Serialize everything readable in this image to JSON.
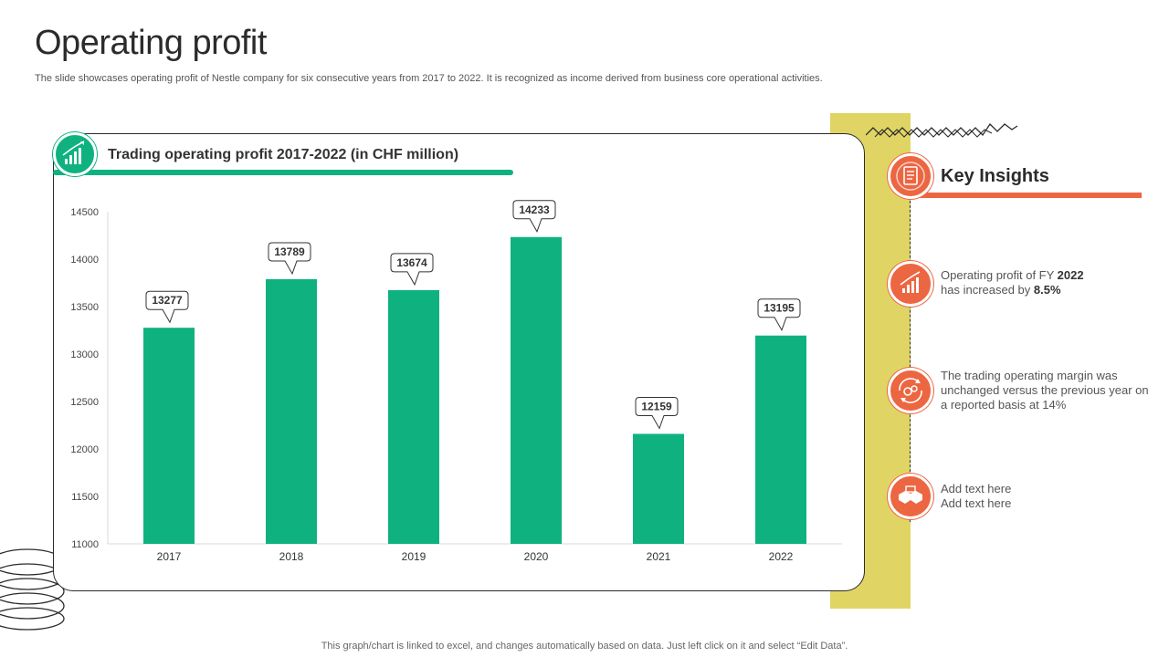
{
  "page": {
    "title": "Operating profit",
    "subtitle": "The slide showcases operating profit of Nestle company for six consecutive years from 2017 to 2022. It is recognized as income derived from business core operational activities.",
    "footnote": "This graph/chart is linked to excel,  and changes automatically based on data. Just left click on it and select “Edit Data”."
  },
  "chart_card": {
    "title": "Trading operating profit 2017-2022 (in CHF million)",
    "icon": "growth-chart-icon"
  },
  "chart_data": {
    "type": "bar",
    "title": "Trading operating profit 2017-2022 (in CHF million)",
    "categories": [
      "2017",
      "2018",
      "2019",
      "2020",
      "2021",
      "2022"
    ],
    "values": [
      13277,
      13789,
      13674,
      14233,
      12159,
      13195
    ],
    "ylim": [
      11000,
      14500
    ],
    "yticks": [
      11000,
      11500,
      12000,
      12500,
      13000,
      13500,
      14000,
      14500
    ],
    "xlabel": "",
    "ylabel": "",
    "grid": false,
    "data_labels": true,
    "bar_color": "#0fb27f"
  },
  "insights": {
    "title": "Key Insights",
    "header_icon": "document-list-icon",
    "items": [
      {
        "icon": "growth-chart-icon",
        "text_pre": "Operating profit of FY ",
        "bold1": "2022",
        "text_mid": "has increased by ",
        "bold2": "8.5%"
      },
      {
        "icon": "gears-cycle-icon",
        "text": "The trading operating margin was unchanged versus the previous year on a reported basis at 14%"
      },
      {
        "icon": "handshake-icon",
        "line1": "Add text here",
        "line2": "Add text here"
      }
    ]
  },
  "colors": {
    "accent_green": "#0fb27f",
    "accent_orange": "#ec6642",
    "band_yellow": "#e0d564"
  }
}
